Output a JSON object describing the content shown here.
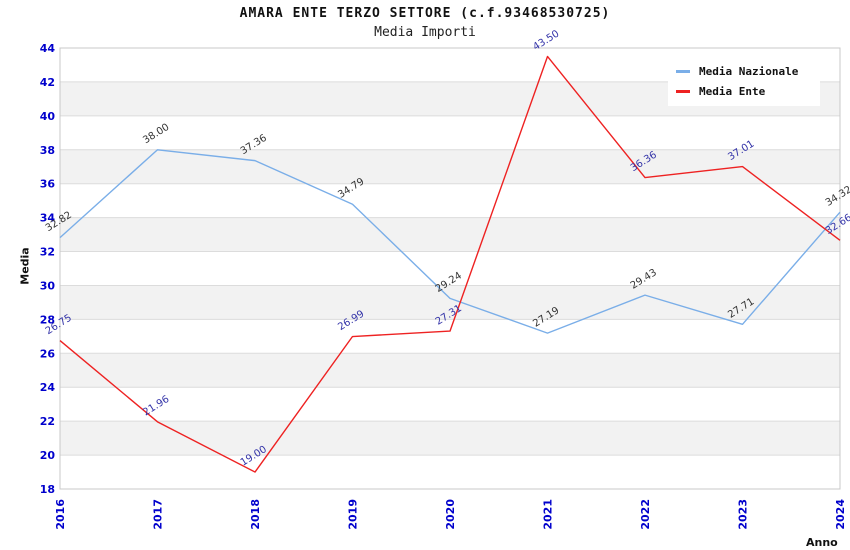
{
  "chart_data": {
    "type": "line",
    "title": "AMARA ENTE TERZO SETTORE (c.f.93468530725)",
    "subtitle": "Media Importi",
    "xlabel": "Anno",
    "ylabel": "Media",
    "x": [
      "2016",
      "2017",
      "2018",
      "2019",
      "2020",
      "2021",
      "2022",
      "2023",
      "2024"
    ],
    "ylim": [
      18,
      44
    ],
    "ytick_step": 2,
    "grid": "horizontal-bands",
    "legend_position": "top-right",
    "colors": {
      "tick_label": "#0000cc",
      "band_gray": "#f2f2f2",
      "grid_line": "#dcdcdc",
      "plot_border": "#c8c8c8"
    },
    "series": [
      {
        "name": "Media Nazionale",
        "color": "#7aaee8",
        "label_color": "#333333",
        "values": [
          32.82,
          38.0,
          37.36,
          34.79,
          29.24,
          27.19,
          29.43,
          27.71,
          34.32
        ]
      },
      {
        "name": "Media Ente",
        "color": "#ee2222",
        "label_color": "#3333a8",
        "values": [
          26.75,
          21.96,
          19.0,
          26.99,
          27.31,
          43.5,
          36.36,
          37.01,
          32.66
        ]
      }
    ]
  }
}
